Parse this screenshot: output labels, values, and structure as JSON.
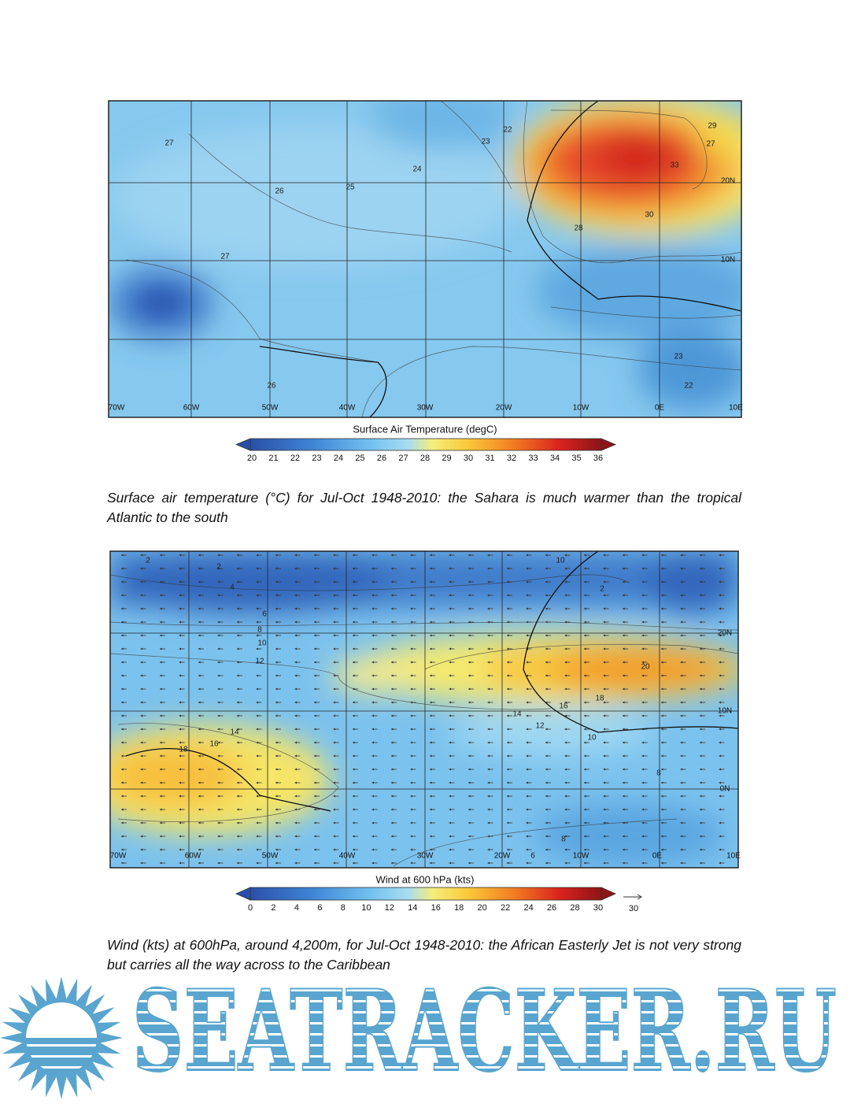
{
  "figures": [
    {
      "lon_labels": [
        "70W",
        "60W",
        "50W",
        "40W",
        "30W",
        "20W",
        "10W",
        "0E",
        "10E"
      ],
      "lat_labels": [
        "20N",
        "10N"
      ],
      "contour_labels": [
        "27",
        "26",
        "25",
        "24",
        "23",
        "22",
        "33",
        "30",
        "29",
        "27",
        "28",
        "23",
        "22",
        "26",
        "27"
      ],
      "colorbar": {
        "title": "Surface Air Temperature (degC)",
        "ticks": [
          20,
          21,
          22,
          23,
          24,
          25,
          26,
          27,
          28,
          29,
          30,
          31,
          32,
          33,
          34,
          35,
          36
        ]
      },
      "caption": "Surface air temperature (°C) for Jul-Oct 1948-2010: the Sahara is much warmer than the tropical Atlantic to the south"
    },
    {
      "lon_labels": [
        "70W",
        "60W",
        "50W",
        "40W",
        "30W",
        "20W",
        "10W",
        "0E",
        "10E"
      ],
      "lat_labels": [
        "20N",
        "10N",
        "0N"
      ],
      "contour_labels": [
        "2",
        "2",
        "4",
        "6",
        "8",
        "10",
        "12",
        "10",
        "2",
        "20",
        "18",
        "16",
        "14",
        "12",
        "10",
        "18",
        "16",
        "14",
        "8",
        "8",
        "6"
      ],
      "colorbar": {
        "title": "Wind at 600 hPa (kts)",
        "ticks": [
          0,
          2,
          4,
          6,
          8,
          10,
          12,
          14,
          16,
          18,
          20,
          22,
          24,
          26,
          28,
          30
        ]
      },
      "reference_vector": 30,
      "caption": "Wind (kts) at 600hPa, around 4,200m, for Jul-Oct 1948-2010: the African Easterly Jet is not very strong but carries all the way across to the Caribbean"
    }
  ],
  "logo": "SEATRACKER.RU"
}
